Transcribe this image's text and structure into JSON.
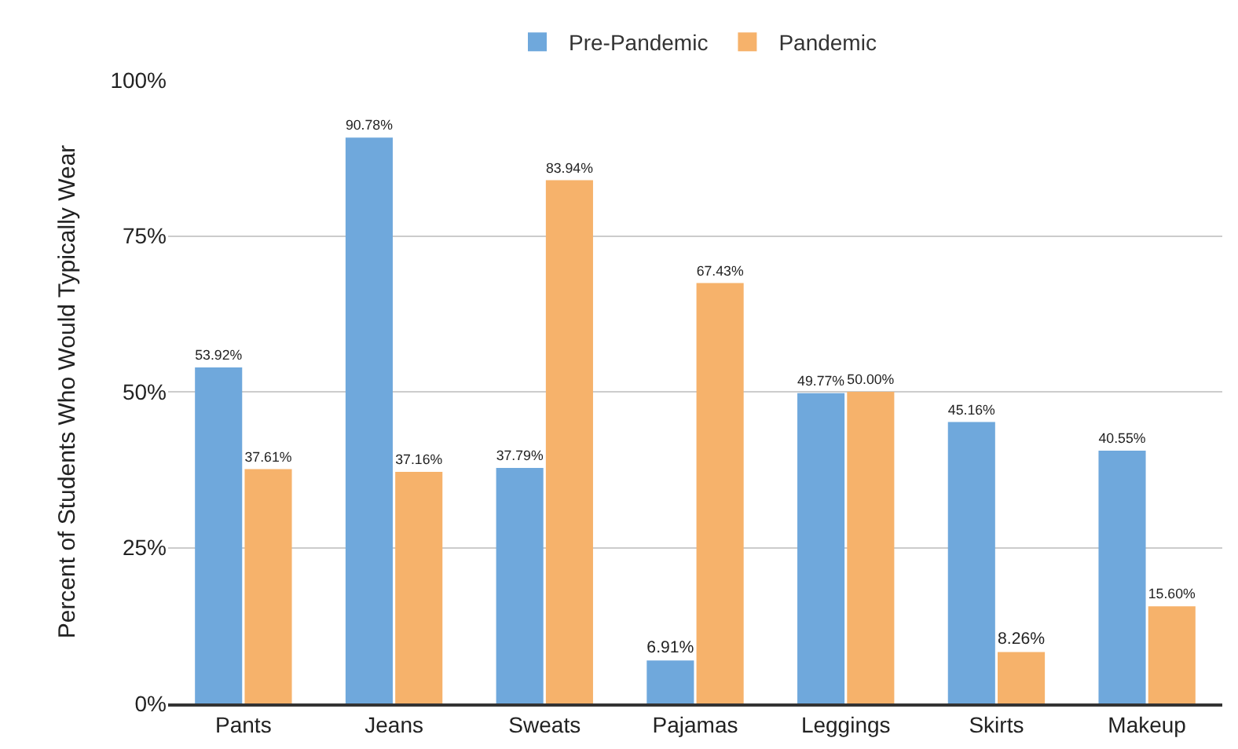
{
  "chart_data": {
    "type": "bar",
    "ylabel": "Percent of Students Who Would Typically Wear",
    "categories": [
      "Pants",
      "Jeans",
      "Sweats",
      "Pajamas",
      "Leggings",
      "Skirts",
      "Makeup"
    ],
    "series": [
      {
        "name": "Pre-Pandemic",
        "color": "#6fa8dc",
        "values": [
          53.92,
          90.78,
          37.79,
          6.91,
          49.77,
          45.16,
          40.55
        ],
        "value_labels": [
          "53.92%",
          "90.78%",
          "37.79%",
          "6.91%",
          "49.77%",
          "45.16%",
          "40.55%"
        ]
      },
      {
        "name": "Pandemic",
        "color": "#f6b26b",
        "values": [
          37.61,
          37.16,
          83.94,
          67.43,
          50.0,
          8.26,
          15.6
        ],
        "value_labels": [
          "37.61%",
          "37.16%",
          "83.94%",
          "67.43%",
          "50.00%",
          "8.26%",
          "15.60%"
        ]
      }
    ],
    "ylim": [
      0,
      100
    ],
    "yticks": [
      {
        "value": 0,
        "label": "0%"
      },
      {
        "value": 25,
        "label": "25%"
      },
      {
        "value": 50,
        "label": "50%"
      },
      {
        "value": 75,
        "label": "75%"
      },
      {
        "value": 100,
        "label": "100%"
      }
    ],
    "grid": "y",
    "legend": "top"
  }
}
